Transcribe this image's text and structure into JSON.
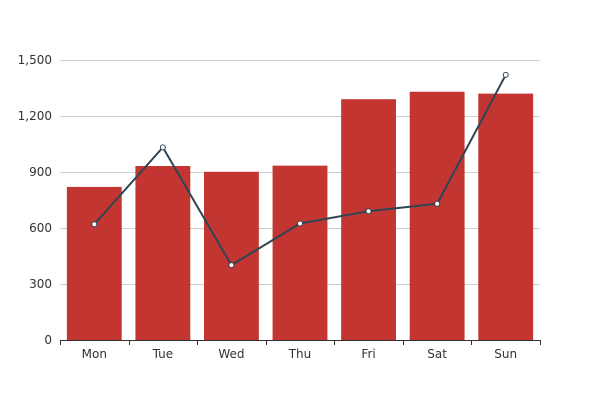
{
  "chart_data": {
    "type": "bar",
    "categories": [
      "Mon",
      "Tue",
      "Wed",
      "Thu",
      "Fri",
      "Sat",
      "Sun"
    ],
    "ylim": [
      0,
      1500
    ],
    "yticks": [
      0,
      300,
      600,
      900,
      1200,
      1500
    ],
    "ytick_labels": [
      "0",
      "300",
      "600",
      "900",
      "1,200",
      "1,500"
    ],
    "grid": true,
    "series": [
      {
        "type": "bar",
        "values": [
          820,
          932,
          901,
          934,
          1290,
          1330,
          1320
        ],
        "color": "#c23531"
      },
      {
        "type": "line",
        "values": [
          620,
          1032,
          401,
          624,
          690,
          730,
          1420
        ],
        "color": "#2f4554"
      }
    ]
  }
}
